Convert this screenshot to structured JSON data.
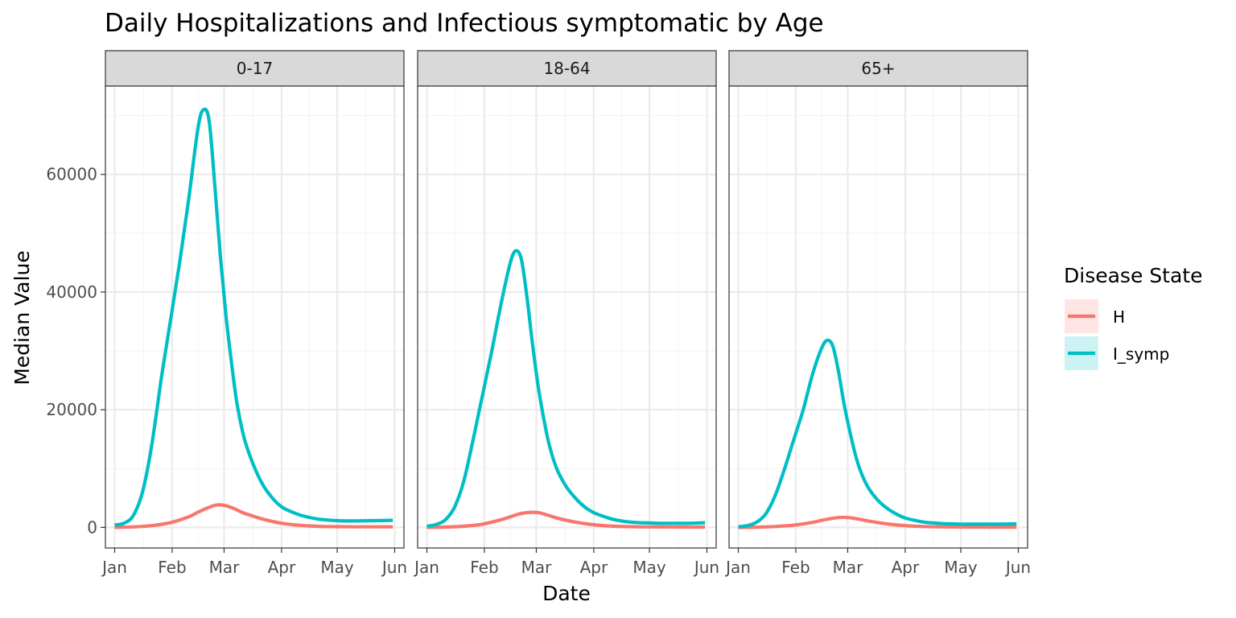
{
  "chart_data": {
    "type": "line",
    "title": "Daily Hospitalizations and Infectious symptomatic by Age",
    "xlabel": "Date",
    "ylabel": "Median Value",
    "ylim": [
      -3500,
      75000
    ],
    "y_ticks": [
      0,
      20000,
      40000,
      60000
    ],
    "y_tick_labels": [
      "0",
      "20000",
      "40000",
      "60000"
    ],
    "x_ticks": [
      0,
      31,
      59,
      90,
      120,
      151
    ],
    "x_tick_labels": [
      "Jan",
      "Feb",
      "Mar",
      "Apr",
      "May",
      "Jun"
    ],
    "x_unit": "day of year (Jan 1 = 0)",
    "legend": {
      "title": "Disease State",
      "position": "right",
      "entries": [
        {
          "name": "H",
          "color": "#F8766D"
        },
        {
          "name": "I_symp",
          "color": "#00BFC4"
        }
      ]
    },
    "panels": [
      {
        "label": "0-17",
        "series": [
          {
            "name": "I_symp",
            "color": "#00BFC4",
            "x": [
              0,
              5,
              10,
              15,
              20,
              25,
              28,
              31,
              35,
              40,
              45,
              48,
              51,
              54,
              57,
              60,
              63,
              66,
              70,
              75,
              80,
              85,
              90,
              95,
              100,
              105,
              110,
              115,
              120,
              125,
              130,
              140,
              150
            ],
            "values": [
              400,
              700,
              2000,
              6000,
              14000,
              25000,
              31000,
              37000,
              45000,
              56000,
              68000,
              71000,
              69000,
              58000,
              46000,
              36000,
              28000,
              21000,
              15000,
              10500,
              7200,
              5000,
              3500,
              2700,
              2100,
              1700,
              1400,
              1250,
              1150,
              1100,
              1100,
              1150,
              1200
            ]
          },
          {
            "name": "H",
            "color": "#F8766D",
            "x": [
              0,
              10,
              20,
              30,
              40,
              45,
              50,
              55,
              60,
              65,
              70,
              80,
              90,
              100,
              110,
              120,
              130,
              140,
              150
            ],
            "values": [
              0,
              80,
              300,
              800,
              1800,
              2600,
              3300,
              3800,
              3700,
              3100,
              2400,
              1400,
              700,
              350,
              180,
              120,
              100,
              100,
              100
            ]
          }
        ]
      },
      {
        "label": "18-64",
        "series": [
          {
            "name": "I_symp",
            "color": "#00BFC4",
            "x": [
              0,
              5,
              10,
              15,
              20,
              25,
              28,
              31,
              35,
              40,
              45,
              48,
              51,
              54,
              57,
              60,
              63,
              66,
              70,
              75,
              80,
              85,
              90,
              95,
              100,
              105,
              110,
              115,
              120,
              125,
              130,
              140,
              150
            ],
            "values": [
              200,
              500,
              1300,
              3500,
              8000,
              15000,
              19500,
              24000,
              30000,
              38000,
              45000,
              47000,
              45500,
              39000,
              31000,
              24000,
              18500,
              14000,
              10000,
              7000,
              5000,
              3500,
              2500,
              1900,
              1400,
              1100,
              900,
              800,
              750,
              700,
              700,
              700,
              800
            ]
          },
          {
            "name": "H",
            "color": "#F8766D",
            "x": [
              0,
              10,
              20,
              30,
              40,
              45,
              50,
              55,
              60,
              65,
              70,
              80,
              90,
              100,
              110,
              120,
              130,
              140,
              150
            ],
            "values": [
              0,
              50,
              200,
              550,
              1300,
              1800,
              2300,
              2550,
              2500,
              2100,
              1600,
              900,
              450,
              220,
              120,
              80,
              70,
              60,
              60
            ]
          }
        ]
      },
      {
        "label": "65+",
        "series": [
          {
            "name": "I_symp",
            "color": "#00BFC4",
            "x": [
              0,
              5,
              10,
              15,
              20,
              25,
              28,
              31,
              35,
              40,
              45,
              48,
              51,
              54,
              57,
              60,
              63,
              66,
              70,
              75,
              80,
              85,
              90,
              95,
              100,
              105,
              110,
              115,
              120,
              125,
              130,
              140,
              150
            ],
            "values": [
              100,
              300,
              900,
              2400,
              5500,
              10000,
              13000,
              16000,
              20000,
              26000,
              30500,
              31800,
              30800,
              26500,
              21000,
              16500,
              12500,
              9500,
              6800,
              4700,
              3300,
              2300,
              1600,
              1200,
              900,
              750,
              650,
              600,
              550,
              550,
              550,
              550,
              600
            ]
          },
          {
            "name": "H",
            "color": "#F8766D",
            "x": [
              0,
              10,
              20,
              30,
              40,
              45,
              50,
              55,
              60,
              65,
              70,
              80,
              90,
              100,
              110,
              120,
              130,
              140,
              150
            ],
            "values": [
              0,
              40,
              150,
              380,
              850,
              1200,
              1500,
              1700,
              1650,
              1400,
              1100,
              600,
              300,
              150,
              80,
              60,
              50,
              40,
              40
            ]
          }
        ]
      }
    ]
  }
}
